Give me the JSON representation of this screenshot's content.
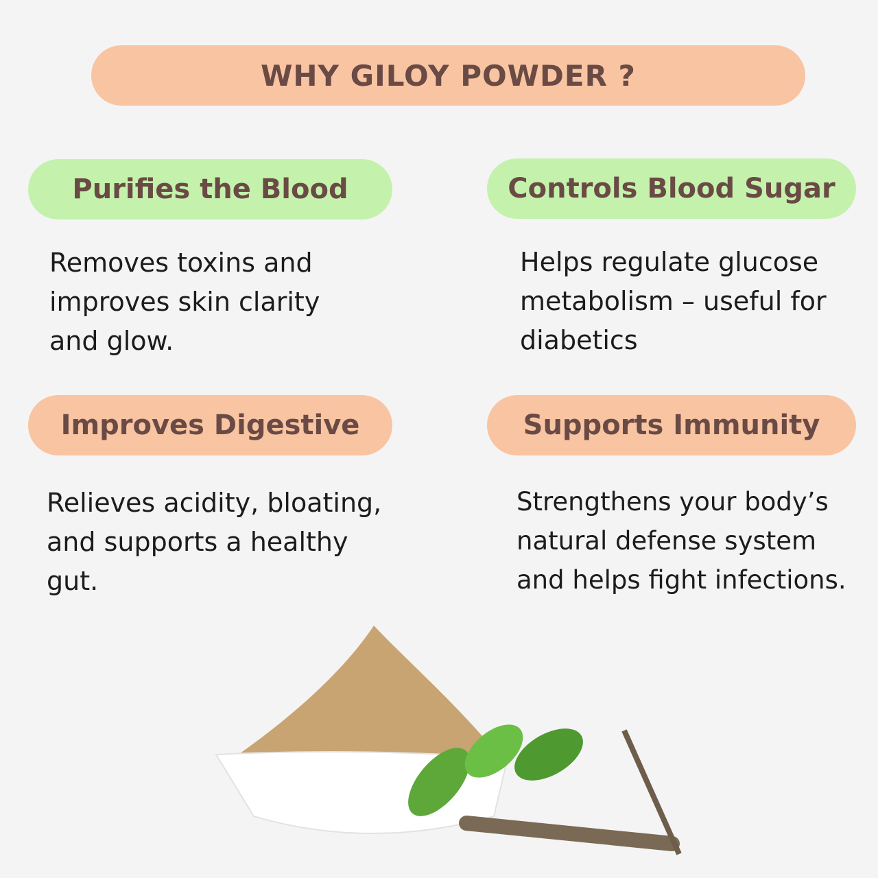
{
  "title": "WHY GILOY POWDER  ?",
  "colors": {
    "peach": "#f8c4a2",
    "green": "#c4f2ac",
    "heading_text": "#6a4a44",
    "background": "#f4f4f4"
  },
  "benefits": [
    {
      "heading": "Purifies the Blood",
      "lines": [
        "Removes toxins and",
        "improves skin clarity",
        "and glow."
      ]
    },
    {
      "heading": "Controls Blood Sugar",
      "lines": [
        "Helps regulate glucose",
        "metabolism – useful for",
        "diabetics"
      ]
    },
    {
      "heading": "Improves Digestive",
      "lines": [
        "Relieves acidity, bloating,",
        "and supports a healthy",
        "gut."
      ]
    },
    {
      "heading": "Supports Immunity",
      "lines": [
        "Strengthens your body’s",
        "natural defense system",
        "and helps fight infections."
      ]
    }
  ],
  "image": "giloy-powder-bowl-with-leaves-and-stems"
}
